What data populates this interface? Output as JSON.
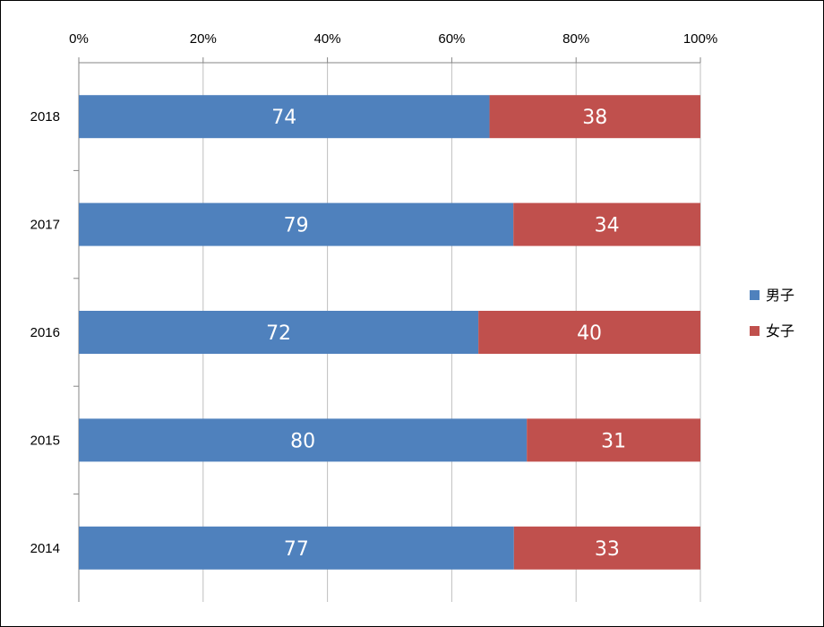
{
  "chart_data": {
    "type": "bar",
    "orientation": "horizontal",
    "stacking": "percent",
    "categories": [
      "2018",
      "2017",
      "2016",
      "2015",
      "2014"
    ],
    "series": [
      {
        "name": "男子",
        "values": [
          74,
          79,
          72,
          80,
          77
        ],
        "color": "#4f81bd"
      },
      {
        "name": "女子",
        "values": [
          38,
          34,
          40,
          31,
          33
        ],
        "color": "#c0504d"
      }
    ],
    "x_ticks": [
      "0%",
      "20%",
      "40%",
      "60%",
      "80%",
      "100%"
    ],
    "xlim": [
      0,
      100
    ],
    "title": "",
    "xlabel": "",
    "ylabel": "",
    "x_axis_position": "top",
    "grid": "vertical",
    "legend_position": "right"
  }
}
